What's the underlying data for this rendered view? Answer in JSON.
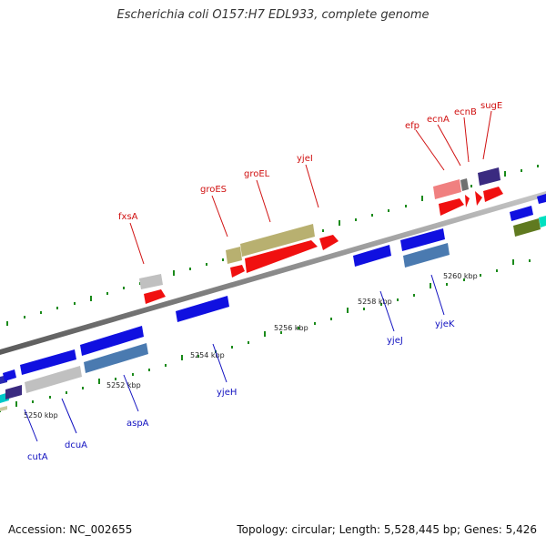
{
  "title": "Escherichia coli O157:H7 EDL933, complete genome",
  "footer": {
    "accession": "Accession: NC_002655",
    "summary": "Topology: circular; Length: 5,528,445 bp; Genes: 5,426"
  },
  "ticks": [
    "5250 kbp",
    "5252 kbp",
    "5254 kbp",
    "5256 kbp",
    "5258 kbp",
    "5260 kbp"
  ],
  "genes_forward": [
    "fxsA",
    "groES",
    "groEL",
    "yjeI",
    "efp",
    "ecnA",
    "ecnB",
    "sugE"
  ],
  "genes_reverse": [
    "cutA",
    "dcuA",
    "aspA",
    "yjeH",
    "yjeJ",
    "yjeK"
  ],
  "colors": {
    "forward_label": "#d01010",
    "reverse_label": "#1010c0",
    "backbone": "#8a8a8a",
    "tick_marks": "#1a8a1a"
  }
}
